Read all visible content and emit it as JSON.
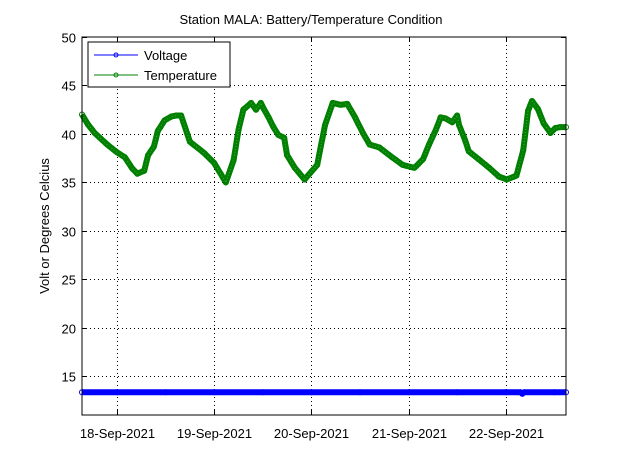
{
  "chart_data": {
    "type": "line",
    "title": "Station MALA: Battery/Temperature Condition",
    "xlabel": "",
    "ylabel": "Volt or Degrees Celcius",
    "xlim": [
      17.64,
      22.62
    ],
    "ylim": [
      11,
      50
    ],
    "x_unit": "day of Sep-2021",
    "grid": true,
    "legend_position": "top-left",
    "xticks": [
      {
        "value": 18,
        "label": "18-Sep-2021"
      },
      {
        "value": 19,
        "label": "19-Sep-2021"
      },
      {
        "value": 20,
        "label": "20-Sep-2021"
      },
      {
        "value": 21,
        "label": "21-Sep-2021"
      },
      {
        "value": 22,
        "label": "22-Sep-2021"
      }
    ],
    "yticks": [
      {
        "value": 15,
        "label": "15"
      },
      {
        "value": 20,
        "label": "20"
      },
      {
        "value": 25,
        "label": "25"
      },
      {
        "value": 30,
        "label": "30"
      },
      {
        "value": 35,
        "label": "35"
      },
      {
        "value": 40,
        "label": "40"
      },
      {
        "value": 45,
        "label": "45"
      },
      {
        "value": 50,
        "label": "50"
      }
    ],
    "series": [
      {
        "name": "Voltage",
        "color": "#0000ff",
        "x": [
          17.64,
          18.0,
          18.5,
          19.0,
          19.5,
          20.0,
          20.5,
          21.0,
          21.5,
          22.0,
          22.15,
          22.17,
          22.19,
          22.5,
          22.62
        ],
        "y": [
          13.35,
          13.35,
          13.35,
          13.35,
          13.35,
          13.35,
          13.35,
          13.35,
          13.35,
          13.35,
          13.35,
          13.2,
          13.35,
          13.35,
          13.35
        ]
      },
      {
        "name": "Temperature",
        "color": "#008000",
        "x": [
          17.64,
          17.7,
          17.77,
          17.9,
          18.0,
          18.08,
          18.16,
          18.21,
          18.28,
          18.32,
          18.38,
          18.42,
          18.49,
          18.56,
          18.61,
          18.66,
          18.75,
          18.9,
          19.0,
          19.12,
          19.2,
          19.25,
          19.3,
          19.38,
          19.43,
          19.48,
          19.51,
          19.56,
          19.61,
          19.66,
          19.72,
          19.75,
          19.83,
          19.93,
          20.06,
          20.14,
          20.22,
          20.3,
          20.37,
          20.45,
          20.53,
          20.6,
          20.7,
          20.83,
          20.94,
          21.06,
          21.15,
          21.21,
          21.28,
          21.3,
          21.33,
          21.38,
          21.45,
          21.5,
          21.52,
          21.58,
          21.62,
          21.72,
          21.83,
          21.93,
          22.01,
          22.11,
          22.18,
          22.23,
          22.27,
          22.33,
          22.39,
          22.46,
          22.51,
          22.56,
          22.62
        ],
        "y": [
          42.0,
          41.0,
          40.1,
          38.9,
          38.1,
          37.6,
          36.4,
          35.9,
          36.2,
          37.8,
          38.7,
          40.3,
          41.4,
          41.8,
          41.9,
          41.9,
          39.2,
          38.0,
          37.0,
          35.0,
          37.3,
          40.4,
          42.5,
          43.2,
          42.5,
          43.2,
          42.6,
          41.7,
          40.7,
          39.9,
          39.6,
          37.8,
          36.5,
          35.3,
          36.8,
          40.9,
          43.2,
          43.0,
          43.1,
          41.7,
          40.1,
          38.9,
          38.6,
          37.6,
          36.8,
          36.5,
          37.4,
          38.9,
          40.4,
          40.9,
          41.7,
          41.6,
          41.2,
          41.9,
          40.9,
          39.4,
          38.2,
          37.4,
          36.5,
          35.6,
          35.3,
          35.7,
          38.3,
          42.4,
          43.4,
          42.6,
          41.1,
          40.1,
          40.6,
          40.7,
          40.7
        ]
      }
    ]
  }
}
